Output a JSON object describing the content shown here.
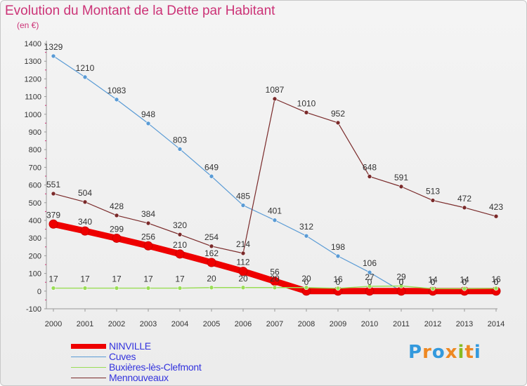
{
  "title": "Evolution du Montant de la Dette par Habitant",
  "unit": "(en €)",
  "logo": "Proxiti",
  "chart_data": {
    "type": "line",
    "title": "Evolution du Montant de la Dette par Habitant",
    "ylabel": "(en €)",
    "x": [
      2000,
      2001,
      2002,
      2003,
      2004,
      2005,
      2006,
      2007,
      2008,
      2009,
      2010,
      2011,
      2012,
      2013,
      2014
    ],
    "ylim": [
      -100,
      1400
    ],
    "yticks": [
      -100,
      0,
      100,
      200,
      300,
      400,
      500,
      600,
      700,
      800,
      900,
      1000,
      1100,
      1200,
      1300,
      1400
    ],
    "grid": false,
    "legend": "bottom-left",
    "series": [
      {
        "name": "NINVILLE",
        "color": "#ee0000",
        "values": [
          379,
          340,
          299,
          256,
          210,
          162,
          112,
          56,
          0,
          0,
          0,
          0,
          0,
          0,
          0
        ]
      },
      {
        "name": "Cuves",
        "color": "#5a9bd5",
        "values": [
          1329,
          1210,
          1083,
          948,
          803,
          649,
          485,
          401,
          312,
          198,
          106,
          0,
          0,
          0,
          0
        ]
      },
      {
        "name": "Buxières-lès-Clefmont",
        "color": "#99dd55",
        "values": [
          17,
          17,
          17,
          17,
          17,
          20,
          20,
          20,
          20,
          16,
          27,
          29,
          14,
          14,
          16
        ]
      },
      {
        "name": "Mennouveaux",
        "color": "#7a2a2a",
        "values": [
          551,
          504,
          428,
          384,
          320,
          254,
          214,
          1087,
          1010,
          952,
          648,
          591,
          513,
          472,
          423
        ]
      }
    ],
    "data_labels": [
      {
        "series": 0,
        "labels": [
          "379",
          "340",
          "299",
          "256",
          "210",
          "162",
          "112",
          "56",
          "0",
          "0",
          "0",
          "0",
          "0",
          "0",
          "0"
        ]
      },
      {
        "series": 1,
        "labels": [
          "1329",
          "1210",
          "1083",
          "948",
          "803",
          "649",
          "485",
          "401",
          "312",
          "198",
          "106",
          "0",
          "0",
          "0",
          "0"
        ]
      },
      {
        "series": 2,
        "labels": [
          "17",
          "17",
          "17",
          "17",
          "17",
          "20",
          "20",
          "20",
          "20",
          "16",
          "27",
          "29",
          "14",
          "14",
          "16"
        ]
      },
      {
        "series": 3,
        "labels": [
          "551",
          "504",
          "428",
          "384",
          "320",
          "254",
          "214",
          "1087",
          "1010",
          "952",
          "648",
          "591",
          "513",
          "472",
          "423"
        ]
      }
    ]
  }
}
